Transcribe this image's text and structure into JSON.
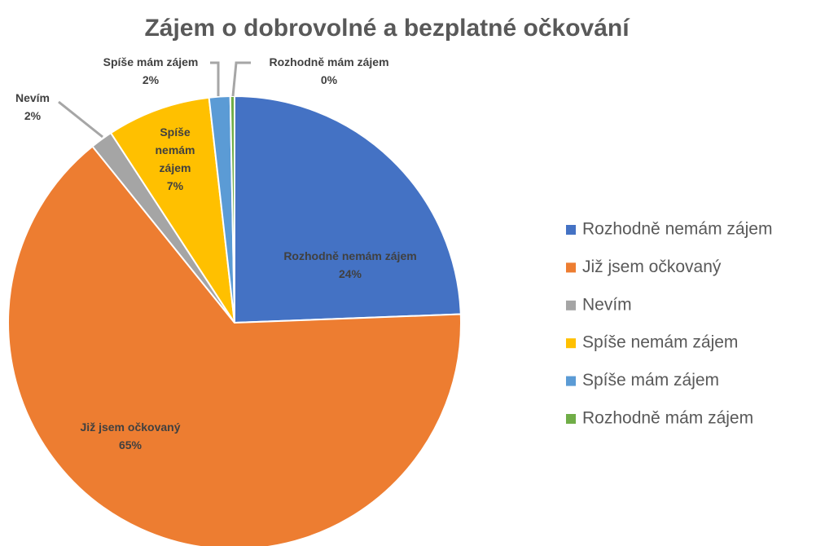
{
  "chart_data": {
    "type": "pie",
    "title": "Zájem o dobrovolné a bezplatné očkování",
    "categories": [
      "Rozhodně nemám zájem",
      "Již jsem očkovaný",
      "Nevím",
      "Spíše nemám zájem",
      "Spíše mám zájem",
      "Rozhodně mám zájem"
    ],
    "values": [
      24.4,
      64.8,
      1.6,
      7.4,
      1.5,
      0.3
    ],
    "value_labels": [
      "24%",
      "65%",
      "2%",
      "7%",
      "2%",
      "0%"
    ],
    "colors": [
      "#4472c4",
      "#ed7d31",
      "#a5a5a5",
      "#ffc000",
      "#5b9bd5",
      "#70ad47"
    ],
    "legend": "right"
  }
}
